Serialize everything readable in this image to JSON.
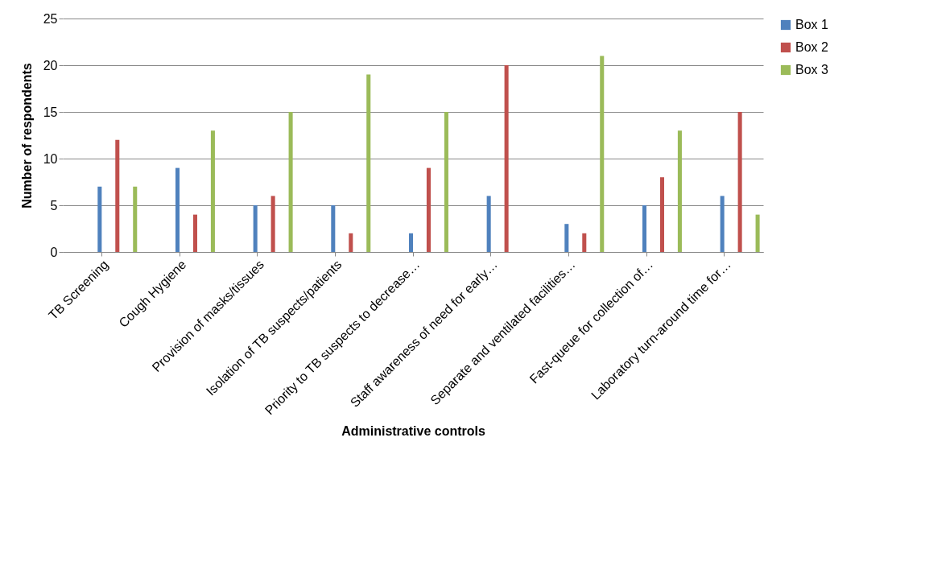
{
  "chart_data": {
    "type": "bar",
    "xlabel": "Administrative controls",
    "ylabel": "Number of respondents",
    "categories": [
      "TB Screening",
      "Cough Hygiene",
      "Provision of masks/tissues",
      "Isolation of TB suspects/patients",
      "Priority to TB suspects to decrease…",
      "Staff awareness of need for early…",
      "Separate and ventilated facilities…",
      "Fast-queue for collection of…",
      "Laboratory turn-around time for…"
    ],
    "series": [
      {
        "name": "Box 1",
        "color": "#4f81bd",
        "values": [
          7,
          9,
          5,
          5,
          2,
          6,
          3,
          5,
          6
        ]
      },
      {
        "name": "Box 2",
        "color": "#c0504d",
        "values": [
          12,
          4,
          6,
          2,
          9,
          20,
          2,
          8,
          15
        ]
      },
      {
        "name": "Box 3",
        "color": "#9bbb59",
        "values": [
          7,
          13,
          15,
          19,
          15,
          0,
          21,
          13,
          4
        ]
      }
    ],
    "ylim": [
      0,
      25
    ],
    "yticks": [
      0,
      5,
      10,
      15,
      20,
      25
    ],
    "grid": "y",
    "legend": "right"
  }
}
